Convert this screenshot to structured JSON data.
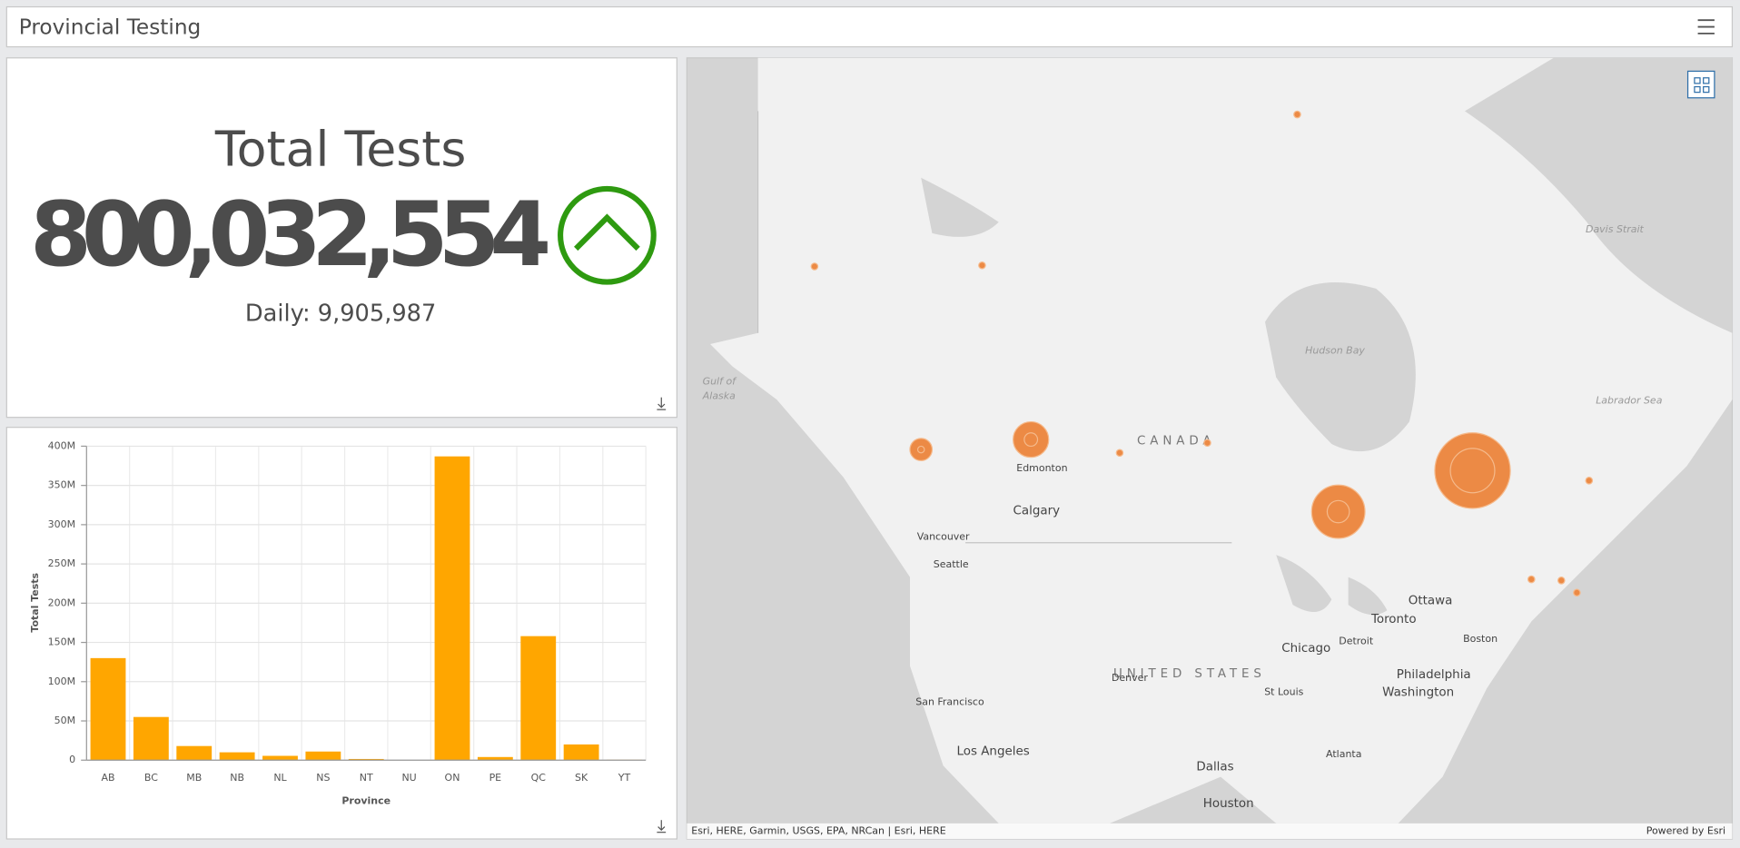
{
  "header": {
    "title": "Provincial Testing"
  },
  "indicator": {
    "title": "Total Tests",
    "value": "800,032,554",
    "daily": "Daily: 9,905,987"
  },
  "chart_data": {
    "type": "bar",
    "categories": [
      "AB",
      "BC",
      "MB",
      "NB",
      "NL",
      "NS",
      "NT",
      "NU",
      "ON",
      "PE",
      "QC",
      "SK",
      "YT"
    ],
    "values": [
      130000000,
      55000000,
      18000000,
      10000000,
      5500000,
      11000000,
      1500000,
      300000,
      387000000,
      4000000,
      158000000,
      20000000,
      500000
    ],
    "color": "#ffa600",
    "ylim": [
      0,
      400000000
    ],
    "yticks": [
      0,
      {
        "value": 50000000,
        "label": "50M"
      },
      {
        "value": 100000000,
        "label": "100M"
      },
      {
        "value": 150000000,
        "label": "150M"
      },
      {
        "value": 200000000,
        "label": "200M"
      },
      {
        "value": 250000000,
        "label": "250M"
      },
      {
        "value": 300000000,
        "label": "300M"
      },
      {
        "value": 350000000,
        "label": "350M"
      },
      {
        "value": 400000000,
        "label": "400M"
      }
    ],
    "x_label": "Province",
    "y_label": "Total Tests",
    "grid": true
  },
  "map": {
    "labels": [
      "Davis Strait",
      "Hudson Bay",
      "Labrador Sea",
      "Gulf of",
      "Alaska",
      "CANADA",
      "Edmonton",
      "Calgary",
      "Vancouver",
      "Seattle",
      "Ottawa",
      "Toronto",
      "Detroit",
      "Chicago",
      "Boston",
      "UNITED STATES",
      "Denver",
      "St Louis",
      "Philadelphia",
      "Washington",
      "San Francisco",
      "Los Angeles",
      "Dallas",
      "Atlanta",
      "Houston"
    ],
    "attribution": "Esri, HERE, Garmin, USGS, EPA, NRCan | Esri, HERE",
    "powered_by": "Powered by Esri"
  }
}
